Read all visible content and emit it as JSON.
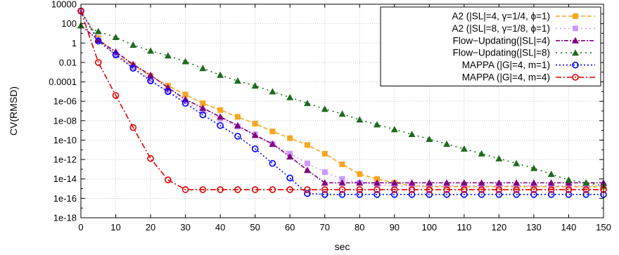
{
  "chart_data": {
    "type": "line",
    "xlabel": "sec",
    "ylabel": "CV(RMSD)",
    "xlim": [
      0,
      150
    ],
    "ylim_exp": [
      -18,
      4
    ],
    "y_scale": "log",
    "grid": true,
    "legend_position": "top-right",
    "x_ticks": [
      "0",
      "10",
      "20",
      "30",
      "40",
      "50",
      "60",
      "70",
      "80",
      "90",
      "100",
      "110",
      "120",
      "130",
      "140",
      "150"
    ],
    "y_ticks": [
      "1e-18",
      "1e-16",
      "1e-14",
      "1e-12",
      "1e-10",
      "1e-08",
      "1e-06",
      "0.0001",
      "0.01",
      "1",
      "100",
      "10000"
    ],
    "series": [
      {
        "name": "A2 (|SL|=4, γ=1/4, ϕ=1)",
        "color": "#f5a623",
        "dash": "6,3",
        "marker": "square",
        "x": [
          0,
          5,
          10,
          15,
          20,
          25,
          30,
          35,
          40,
          45,
          50,
          55,
          60,
          65,
          70,
          75,
          80,
          85,
          90,
          95,
          100,
          105,
          110,
          115,
          120,
          125,
          130,
          135,
          140,
          145,
          150
        ],
        "log10y": [
          3.3,
          0.5,
          -1.2,
          -2.3,
          -3.4,
          -4.4,
          -5.3,
          -6.2,
          -6.9,
          -7.6,
          -8.3,
          -9.1,
          -9.8,
          -10.5,
          -11.4,
          -12.5,
          -13.5,
          -14.0,
          -14.4,
          -14.7,
          -14.8,
          -14.8,
          -14.8,
          -14.8,
          -14.8,
          -14.8,
          -14.8,
          -14.8,
          -14.8,
          -14.8,
          -14.8
        ]
      },
      {
        "name": "A2 (|SL|=8, γ=1/8, ϕ=1)",
        "color": "#cc99ff",
        "dash": "2,4",
        "marker": "square",
        "x": [
          0,
          5,
          10,
          15,
          20,
          25,
          30,
          35,
          40,
          45,
          50,
          55,
          60,
          65,
          70,
          75,
          80,
          85,
          90,
          95,
          100,
          105,
          110,
          115,
          120,
          125,
          130,
          135,
          140,
          145,
          150
        ],
        "log10y": [
          3.3,
          0.3,
          -1.3,
          -2.5,
          -3.8,
          -5.0,
          -6.0,
          -7.0,
          -7.8,
          -8.6,
          -9.4,
          -10.4,
          -11.4,
          -12.4,
          -13.3,
          -14.0,
          -14.4,
          -14.6,
          -14.7,
          -14.7,
          -14.7,
          -14.7,
          -14.7,
          -14.7,
          -14.7,
          -14.7,
          -14.7,
          -14.7,
          -14.7,
          -14.7,
          -14.7
        ]
      },
      {
        "name": "Flow−Updating(|SL|=4)",
        "color": "#800080",
        "dash": "6,2,2,2",
        "marker": "triangle",
        "x": [
          0,
          5,
          10,
          15,
          20,
          25,
          30,
          35,
          40,
          45,
          50,
          55,
          60,
          65,
          70,
          75,
          80,
          85,
          90,
          95,
          100,
          105,
          110,
          115,
          120,
          125,
          130,
          135,
          140,
          145,
          150
        ],
        "log10y": [
          1.8,
          0.3,
          -0.9,
          -2.2,
          -3.3,
          -4.6,
          -5.8,
          -6.7,
          -7.6,
          -8.5,
          -9.5,
          -10.4,
          -11.7,
          -13.1,
          -14.4,
          -14.4,
          -14.4,
          -14.4,
          -14.4,
          -14.4,
          -14.4,
          -14.4,
          -14.4,
          -14.4,
          -14.4,
          -14.4,
          -14.4,
          -14.4,
          -14.4,
          -14.4,
          -14.4
        ]
      },
      {
        "name": "Flow−Updating(|SL|=8)",
        "color": "#1e6b1e",
        "dash": "2,5",
        "marker": "triangle",
        "x": [
          0,
          5,
          10,
          15,
          20,
          25,
          30,
          35,
          40,
          45,
          50,
          55,
          60,
          65,
          70,
          75,
          80,
          85,
          90,
          95,
          100,
          105,
          110,
          115,
          120,
          125,
          130,
          135,
          140,
          145,
          150
        ],
        "log10y": [
          1.8,
          1.2,
          0.6,
          -0.2,
          -0.8,
          -1.3,
          -1.9,
          -2.6,
          -3.3,
          -3.9,
          -4.4,
          -5.0,
          -5.6,
          -6.2,
          -6.8,
          -7.3,
          -7.9,
          -8.4,
          -8.9,
          -9.4,
          -9.9,
          -10.4,
          -10.9,
          -11.4,
          -11.9,
          -12.4,
          -12.9,
          -13.5,
          -14.1,
          -14.4,
          -14.7
        ]
      },
      {
        "name": "MAPPA (|G|=4, m=1)",
        "color": "#0000ff",
        "dash": "2,3",
        "marker": "circle",
        "x": [
          0,
          5,
          10,
          15,
          20,
          25,
          30,
          35,
          40,
          45,
          50,
          55,
          60,
          65,
          70,
          75,
          80,
          85,
          90,
          95,
          100,
          105,
          110,
          115,
          120,
          125,
          130,
          135,
          140,
          145,
          150
        ],
        "log10y": [
          3.3,
          0.2,
          -1.2,
          -2.6,
          -3.9,
          -5.0,
          -6.2,
          -7.4,
          -8.5,
          -9.6,
          -10.9,
          -12.4,
          -13.9,
          -15.5,
          -15.6,
          -15.6,
          -15.6,
          -15.6,
          -15.6,
          -15.6,
          -15.6,
          -15.6,
          -15.6,
          -15.6,
          -15.6,
          -15.6,
          -15.6,
          -15.6,
          -15.6,
          -15.6,
          -15.6
        ]
      },
      {
        "name": "MAPPA (|G|=4, m=4)",
        "color": "#e00000",
        "dash": "8,3,2,3",
        "marker": "circle",
        "x": [
          0,
          5,
          10,
          15,
          20,
          25,
          30,
          35,
          40,
          45,
          50,
          55,
          60,
          65,
          70,
          75,
          80,
          85,
          90,
          95,
          100,
          105,
          110,
          115,
          120,
          125,
          130,
          135,
          140,
          145,
          150
        ],
        "log10y": [
          3.3,
          -2.0,
          -5.4,
          -8.7,
          -11.9,
          -14.1,
          -15.1,
          -15.1,
          -15.1,
          -15.1,
          -15.1,
          -15.1,
          -15.1,
          -15.1,
          -15.1,
          -15.1,
          -15.1,
          -15.1,
          -15.1,
          -15.1,
          -15.1,
          -15.1,
          -15.1,
          -15.1,
          -15.1,
          -15.1,
          -15.1,
          -15.1,
          -15.1,
          -15.1,
          -15.1
        ]
      }
    ]
  }
}
